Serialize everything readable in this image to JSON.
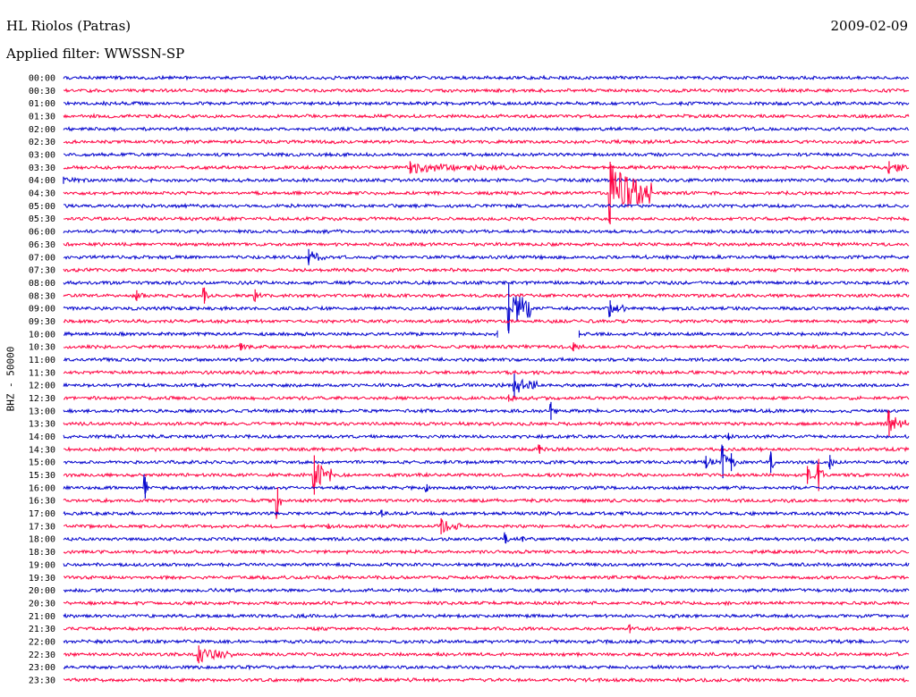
{
  "header": {
    "station": "HL Riolos (Patras)",
    "date": "2009-02-09",
    "filter_label": "Applied filter: WWSSN-SP"
  },
  "chart_data": {
    "type": "line",
    "title": "HL Riolos (Patras)",
    "ylabel": "BHZ - 50000",
    "xlabel": "",
    "grid": false,
    "legend": "none",
    "row_colors": [
      "#0000cc",
      "#ff0040"
    ],
    "row_labels": [
      "00:00",
      "00:30",
      "01:00",
      "01:30",
      "02:00",
      "02:30",
      "03:00",
      "03:30",
      "04:00",
      "04:30",
      "05:00",
      "05:30",
      "06:00",
      "06:30",
      "07:00",
      "07:30",
      "08:00",
      "08:30",
      "09:00",
      "09:30",
      "10:00",
      "10:30",
      "11:00",
      "11:30",
      "12:00",
      "12:30",
      "13:00",
      "13:30",
      "14:00",
      "14:30",
      "15:00",
      "15:30",
      "16:00",
      "16:30",
      "17:00",
      "17:30",
      "18:00",
      "18:30",
      "19:00",
      "19:30",
      "20:00",
      "20:30",
      "21:00",
      "21:30",
      "22:00",
      "22:30",
      "23:00",
      "23:30"
    ],
    "row_duration_minutes": 30,
    "events": [
      {
        "row": "03:30",
        "minute": 12.3,
        "amplitude": 7,
        "duration": 3.5
      },
      {
        "row": "03:30",
        "minute": 29.3,
        "amplitude": 7,
        "duration": 1.3
      },
      {
        "row": "04:00",
        "minute": 0.0,
        "amplitude": 4,
        "duration": 1.5
      },
      {
        "row": "04:30",
        "minute": 19.4,
        "amplitude": 35,
        "duration": 1.5
      },
      {
        "row": "07:00",
        "minute": 8.7,
        "amplitude": 9,
        "duration": 0.6
      },
      {
        "row": "08:30",
        "minute": 2.6,
        "amplitude": 6,
        "duration": 0.4
      },
      {
        "row": "08:30",
        "minute": 5.0,
        "amplitude": 9,
        "duration": 0.2
      },
      {
        "row": "08:30",
        "minute": 6.8,
        "amplitude": 7,
        "duration": 0.2
      },
      {
        "row": "09:00",
        "minute": 15.8,
        "amplitude": 28,
        "duration": 0.8
      },
      {
        "row": "09:00",
        "minute": 19.4,
        "amplitude": 9,
        "duration": 0.7
      },
      {
        "row": "10:30",
        "minute": 6.3,
        "amplitude": 4,
        "duration": 0.7
      },
      {
        "row": "10:30",
        "minute": 18.1,
        "amplitude": 5,
        "duration": 0.5
      },
      {
        "row": "12:00",
        "minute": 16.0,
        "amplitude": 13,
        "duration": 0.8
      },
      {
        "row": "12:30",
        "minute": 15.8,
        "amplitude": 4,
        "duration": 0.7
      },
      {
        "row": "13:00",
        "minute": 17.3,
        "amplitude": 10,
        "duration": 0.2
      },
      {
        "row": "13:30",
        "minute": 29.3,
        "amplitude": 14,
        "duration": 0.6
      },
      {
        "row": "14:00",
        "minute": 23.6,
        "amplitude": 4,
        "duration": 0.3
      },
      {
        "row": "14:30",
        "minute": 16.9,
        "amplitude": 5,
        "duration": 0.3
      },
      {
        "row": "15:00",
        "minute": 22.8,
        "amplitude": 7,
        "duration": 0.4
      },
      {
        "row": "15:00",
        "minute": 23.4,
        "amplitude": 18,
        "duration": 0.2
      },
      {
        "row": "15:00",
        "minute": 23.7,
        "amplitude": 10,
        "duration": 0.2
      },
      {
        "row": "15:00",
        "minute": 25.1,
        "amplitude": 12,
        "duration": 0.2
      },
      {
        "row": "15:00",
        "minute": 27.2,
        "amplitude": 8,
        "duration": 0.2
      },
      {
        "row": "15:30",
        "minute": 8.9,
        "amplitude": 22,
        "duration": 0.6
      },
      {
        "row": "15:30",
        "minute": 26.4,
        "amplitude": 10,
        "duration": 0.3
      },
      {
        "row": "15:30",
        "minute": 26.8,
        "amplitude": 18,
        "duration": 0.2
      },
      {
        "row": "16:00",
        "minute": 2.9,
        "amplitude": 12,
        "duration": 0.2
      },
      {
        "row": "16:00",
        "minute": 12.9,
        "amplitude": 4,
        "duration": 0.3
      },
      {
        "row": "16:30",
        "minute": 7.6,
        "amplitude": 15,
        "duration": 0.2
      },
      {
        "row": "17:00",
        "minute": 11.3,
        "amplitude": 4,
        "duration": 0.2
      },
      {
        "row": "17:30",
        "minute": 9.4,
        "amplitude": 3,
        "duration": 0.5
      },
      {
        "row": "17:30",
        "minute": 13.4,
        "amplitude": 9,
        "duration": 0.7
      },
      {
        "row": "18:00",
        "minute": 15.7,
        "amplitude": 5,
        "duration": 0.2
      },
      {
        "row": "18:00",
        "minute": 16.3,
        "amplitude": 3,
        "duration": 0.2
      },
      {
        "row": "21:30",
        "minute": 20.1,
        "amplitude": 5,
        "duration": 0.2
      },
      {
        "row": "22:30",
        "minute": 4.8,
        "amplitude": 10,
        "duration": 1.2
      }
    ],
    "data_gaps": [
      {
        "row": "10:00",
        "start_minute": 15.4,
        "end_minute": 18.3
      }
    ]
  }
}
